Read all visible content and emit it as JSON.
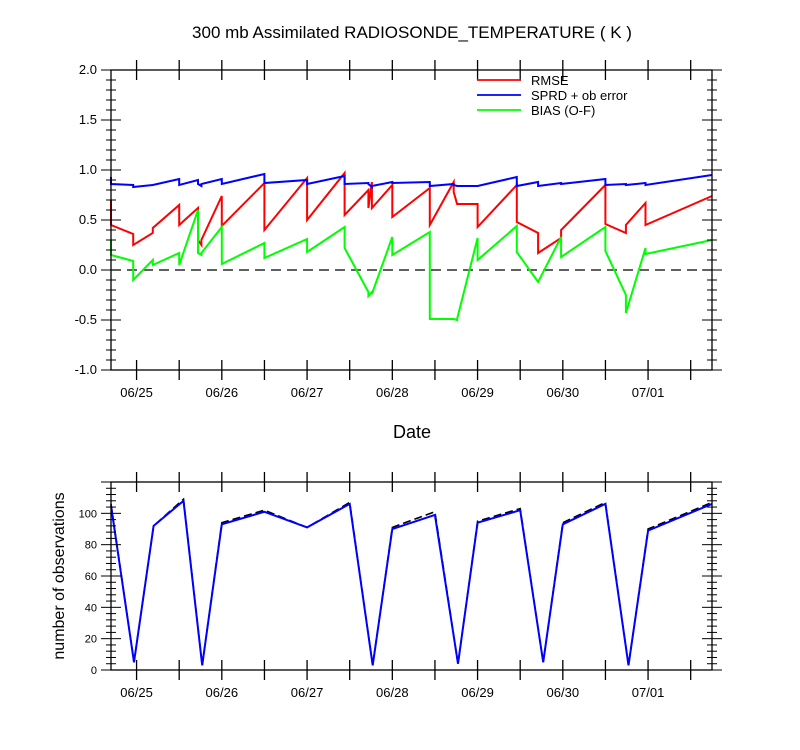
{
  "chart_data": [
    {
      "type": "line",
      "title": "300 mb Assimilated RADIOSONDE_TEMPERATURE ( K )",
      "xlabel": "Date",
      "ylabel": "",
      "ylim": [
        -1.0,
        2.0
      ],
      "yticks": [
        "-1.0",
        "-0.5",
        "0.0",
        "0.5",
        "1.0",
        "1.5",
        "2.0"
      ],
      "xlim": [
        -0.3,
        6.75
      ],
      "x_ticklabels": [
        {
          "x": 0,
          "label": "06/25"
        },
        {
          "x": 1,
          "label": "06/26"
        },
        {
          "x": 2,
          "label": "06/27"
        },
        {
          "x": 3,
          "label": "06/28"
        },
        {
          "x": 4,
          "label": "06/29"
        },
        {
          "x": 5,
          "label": "06/30"
        },
        {
          "x": 6,
          "label": "07/01"
        }
      ],
      "zero_line": true,
      "legend": "top-right",
      "series": [
        {
          "name": "RMSE",
          "color": "#ff0000",
          "x": [
            -0.3,
            -0.3,
            -0.04,
            -0.04,
            0.19,
            0.19,
            0.5,
            0.5,
            0.72,
            0.72,
            0.76,
            0.76,
            1.0,
            1.0,
            1.5,
            1.5,
            2.0,
            2.0,
            2.44,
            2.44,
            2.72,
            2.72,
            2.76,
            2.76,
            3.0,
            3.0,
            3.44,
            3.44,
            3.72,
            3.72,
            3.76,
            3.76,
            4.0,
            4.0,
            4.46,
            4.46,
            4.71,
            4.71,
            4.98,
            4.98,
            5.5,
            5.5,
            5.74,
            5.74,
            5.97,
            5.97,
            6.75
          ],
          "y": [
            0.7,
            0.45,
            0.36,
            0.25,
            0.37,
            0.42,
            0.65,
            0.45,
            0.62,
            0.3,
            0.25,
            0.3,
            0.74,
            0.44,
            0.87,
            0.4,
            0.92,
            0.5,
            0.97,
            0.55,
            0.8,
            0.62,
            0.88,
            0.62,
            0.85,
            0.53,
            0.82,
            0.45,
            0.88,
            0.78,
            0.66,
            0.66,
            0.66,
            0.43,
            0.85,
            0.48,
            0.37,
            0.17,
            0.32,
            0.4,
            0.85,
            0.46,
            0.37,
            0.45,
            0.67,
            0.45,
            0.74
          ]
        },
        {
          "name": "SPRD + ob error",
          "color": "#0000ff",
          "x": [
            -0.3,
            -0.3,
            -0.04,
            -0.04,
            0.19,
            0.19,
            0.5,
            0.5,
            0.72,
            0.72,
            0.76,
            0.76,
            1.0,
            1.0,
            1.5,
            1.5,
            2.0,
            2.0,
            2.44,
            2.44,
            2.72,
            2.72,
            2.76,
            2.76,
            3.0,
            3.0,
            3.44,
            3.44,
            3.72,
            3.72,
            3.76,
            3.76,
            4.0,
            4.0,
            4.46,
            4.46,
            4.71,
            4.71,
            4.98,
            4.98,
            5.5,
            5.5,
            5.74,
            5.74,
            5.97,
            5.97,
            6.75
          ],
          "y": [
            0.93,
            0.86,
            0.85,
            0.83,
            0.85,
            0.85,
            0.91,
            0.85,
            0.9,
            0.86,
            0.84,
            0.86,
            0.91,
            0.86,
            0.96,
            0.87,
            0.9,
            0.86,
            0.94,
            0.86,
            0.87,
            0.86,
            0.83,
            0.84,
            0.88,
            0.87,
            0.88,
            0.84,
            0.86,
            0.85,
            0.84,
            0.84,
            0.84,
            0.84,
            0.93,
            0.84,
            0.88,
            0.84,
            0.87,
            0.86,
            0.91,
            0.85,
            0.86,
            0.85,
            0.87,
            0.85,
            0.95
          ]
        },
        {
          "name": "BIAS (O-F)",
          "color": "#00ff00",
          "x": [
            -0.3,
            -0.3,
            -0.04,
            -0.04,
            0.19,
            0.19,
            0.5,
            0.5,
            0.72,
            0.72,
            0.76,
            0.76,
            1.0,
            1.0,
            1.5,
            1.5,
            2.0,
            2.0,
            2.44,
            2.44,
            2.72,
            2.72,
            2.76,
            2.76,
            3.0,
            3.0,
            3.44,
            3.44,
            3.72,
            3.72,
            3.76,
            3.76,
            4.0,
            4.0,
            4.46,
            4.46,
            4.71,
            4.71,
            4.98,
            4.98,
            5.5,
            5.5,
            5.74,
            5.74,
            5.97,
            5.97,
            6.75
          ],
          "y": [
            0.3,
            0.15,
            0.09,
            -0.1,
            0.1,
            0.05,
            0.17,
            0.05,
            0.6,
            0.17,
            0.15,
            0.17,
            0.43,
            0.06,
            0.27,
            0.12,
            0.31,
            0.18,
            0.43,
            0.22,
            -0.22,
            -0.26,
            -0.22,
            -0.24,
            0.33,
            0.15,
            0.38,
            -0.49,
            -0.49,
            -0.49,
            -0.5,
            -0.49,
            0.32,
            0.1,
            0.44,
            0.18,
            -0.12,
            -0.12,
            0.33,
            0.13,
            0.43,
            0.19,
            -0.25,
            -0.43,
            0.22,
            0.16,
            0.3
          ]
        }
      ]
    },
    {
      "type": "line",
      "title": "",
      "xlabel": "",
      "ylabel": "number of observations",
      "ylim": [
        0,
        120
      ],
      "yticks": [
        "0",
        "20",
        "40",
        "60",
        "80",
        "100"
      ],
      "xlim": [
        -0.3,
        6.75
      ],
      "x_ticklabels": [
        {
          "x": 0,
          "label": "06/25"
        },
        {
          "x": 1,
          "label": "06/26"
        },
        {
          "x": 2,
          "label": "06/27"
        },
        {
          "x": 3,
          "label": "06/28"
        },
        {
          "x": 4,
          "label": "06/29"
        },
        {
          "x": 5,
          "label": "06/30"
        },
        {
          "x": 6,
          "label": "07/01"
        }
      ],
      "series": [
        {
          "color": "#000000",
          "dashed": true,
          "x": [
            -0.3,
            -0.03,
            0.2,
            0.55,
            0.77,
            1.0,
            1.5,
            2.0,
            2.5,
            2.77,
            3.0,
            3.5,
            3.77,
            4.0,
            4.5,
            4.77,
            5.0,
            5.5,
            5.77,
            6.0,
            6.75
          ],
          "y": [
            106,
            5,
            92,
            109,
            3,
            94,
            102,
            91,
            107,
            3,
            91,
            101,
            4,
            95,
            103,
            5,
            94,
            107,
            3,
            90,
            107
          ]
        },
        {
          "color": "#0000ff",
          "dashed": false,
          "x": [
            -0.3,
            -0.03,
            0.2,
            0.55,
            0.77,
            1.0,
            1.5,
            2.0,
            2.5,
            2.77,
            3.0,
            3.5,
            3.77,
            4.0,
            4.5,
            4.77,
            5.0,
            5.5,
            5.77,
            6.0,
            6.75
          ],
          "y": [
            105,
            5,
            92,
            108,
            3,
            93,
            101,
            91,
            106,
            3,
            90,
            99,
            4,
            94,
            102,
            5,
            93,
            106,
            3,
            89,
            106
          ]
        }
      ]
    }
  ]
}
